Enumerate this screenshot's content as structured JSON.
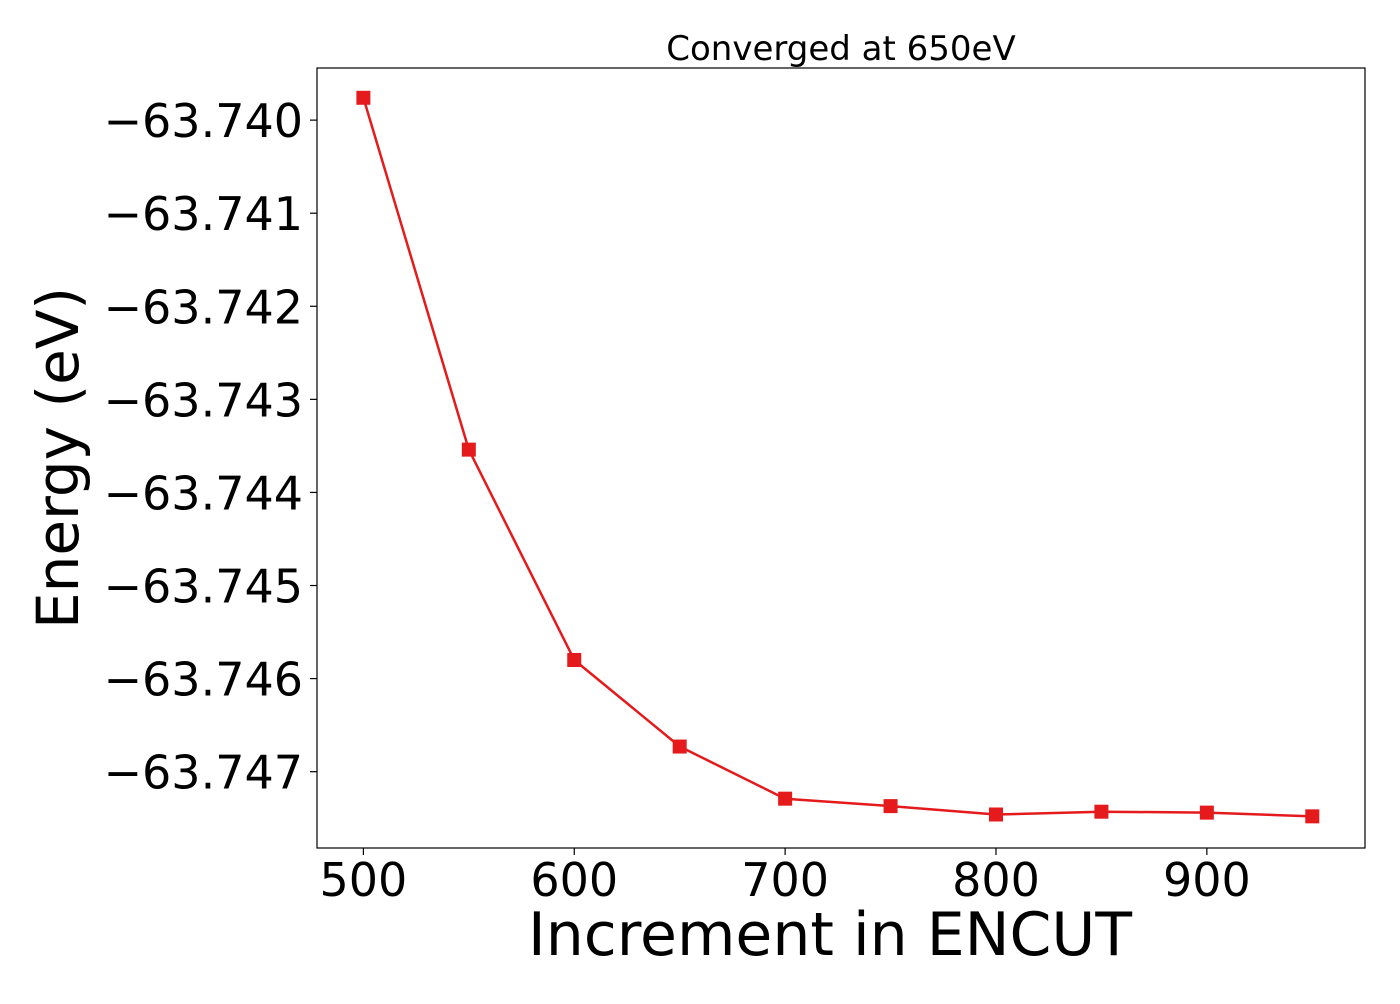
{
  "chart_data": {
    "type": "line",
    "title": "Converged at 650eV",
    "xlabel": "Increment in ENCUT",
    "ylabel": "Energy (eV)",
    "xlim": [
      478,
      975
    ],
    "ylim": [
      -63.74782,
      -63.73944
    ],
    "xticks": [
      {
        "value": 500,
        "label": "500"
      },
      {
        "value": 600,
        "label": "600"
      },
      {
        "value": 700,
        "label": "700"
      },
      {
        "value": 800,
        "label": "800"
      },
      {
        "value": 900,
        "label": "900"
      }
    ],
    "yticks": [
      {
        "value": -63.74,
        "label": "−63.740"
      },
      {
        "value": -63.741,
        "label": "−63.741"
      },
      {
        "value": -63.742,
        "label": "−63.742"
      },
      {
        "value": -63.743,
        "label": "−63.743"
      },
      {
        "value": -63.744,
        "label": "−63.744"
      },
      {
        "value": -63.745,
        "label": "−63.745"
      },
      {
        "value": -63.746,
        "label": "−63.746"
      },
      {
        "value": -63.747,
        "label": "−63.747"
      }
    ],
    "grid": false,
    "legend": "none",
    "series": [
      {
        "color": "#e41a1c",
        "marker": "square",
        "points": [
          {
            "x": 500,
            "y": -63.73976
          },
          {
            "x": 550,
            "y": -63.74354
          },
          {
            "x": 600,
            "y": -63.7458
          },
          {
            "x": 650,
            "y": -63.74673
          },
          {
            "x": 700,
            "y": -63.74729
          },
          {
            "x": 750,
            "y": -63.74737
          },
          {
            "x": 800,
            "y": -63.74746
          },
          {
            "x": 850,
            "y": -63.74743
          },
          {
            "x": 900,
            "y": -63.74744
          },
          {
            "x": 950,
            "y": -63.74748
          }
        ]
      }
    ]
  }
}
